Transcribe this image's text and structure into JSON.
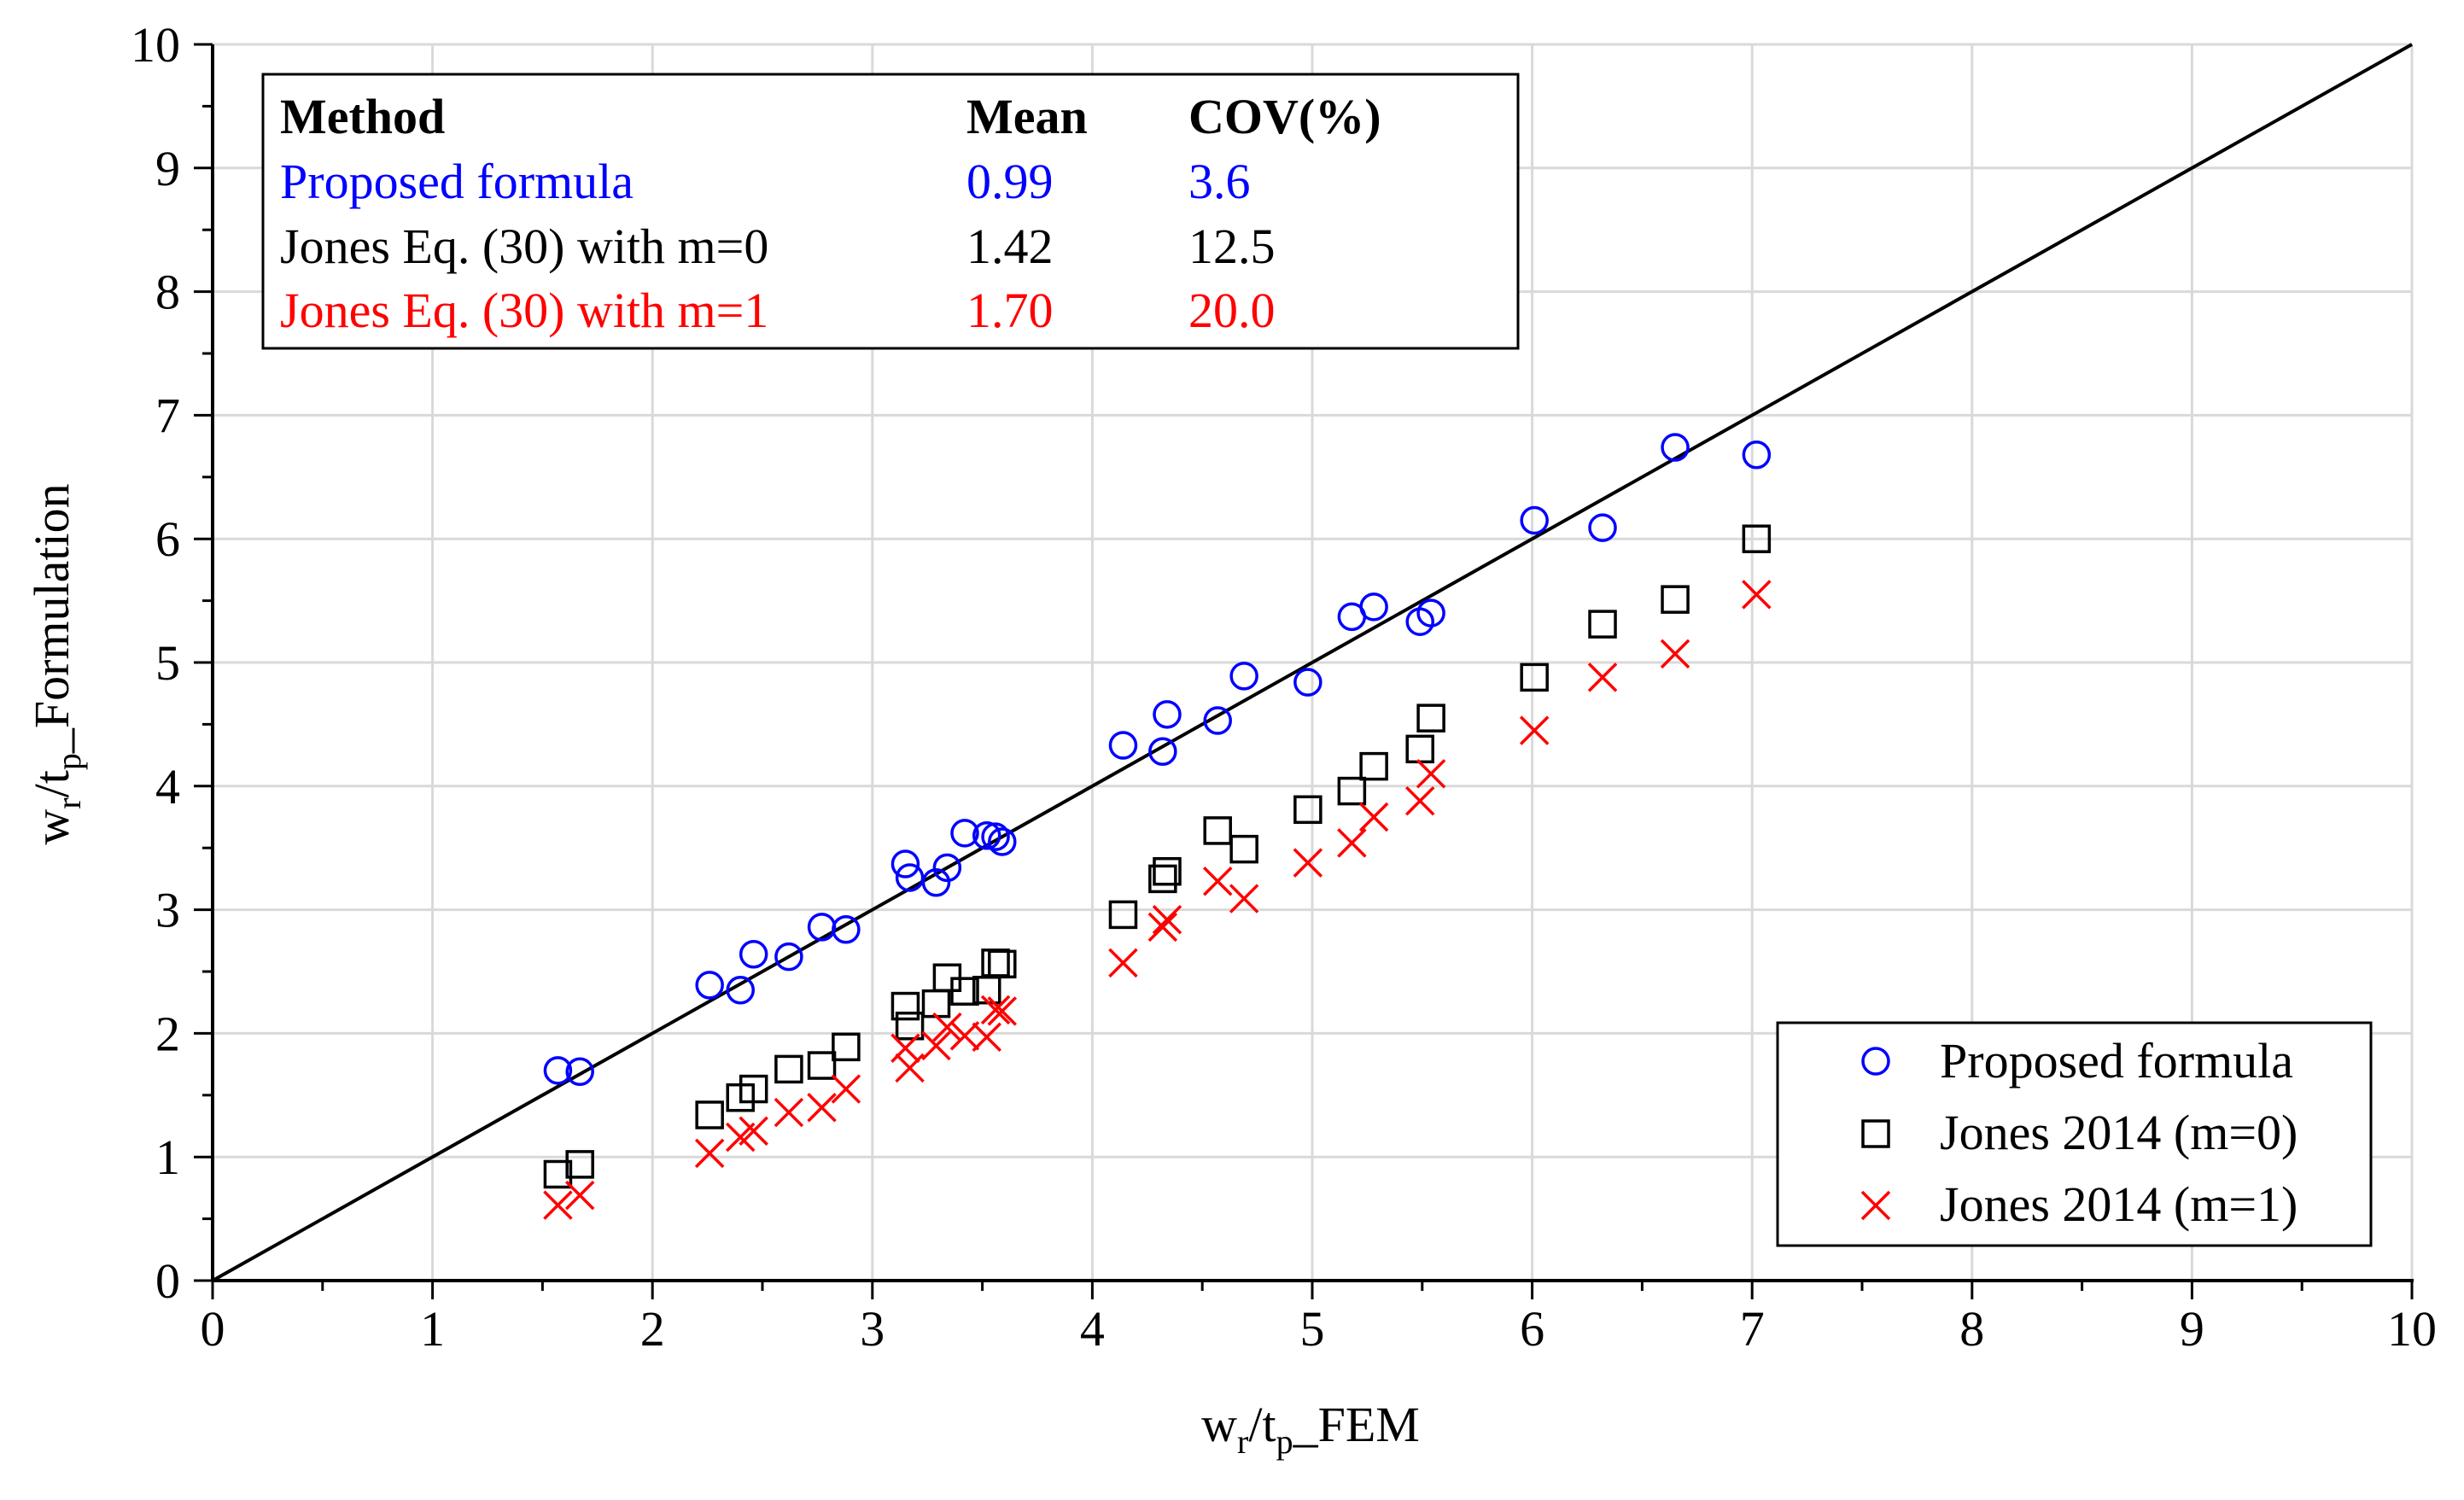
{
  "chart_data": {
    "type": "scatter",
    "title": "",
    "xlabel": {
      "main": "w",
      "sub1": "r",
      "mid": "/t",
      "sub2": "p",
      "tail": "_FEM"
    },
    "ylabel": {
      "main": "w",
      "sub1": "r",
      "mid": "/t",
      "sub2": "p",
      "tail": "_Formulation"
    },
    "xlim": [
      0,
      10
    ],
    "ylim": [
      0,
      10
    ],
    "xticks": [
      "0",
      "1",
      "2",
      "3",
      "4",
      "5",
      "6",
      "7",
      "8",
      "9",
      "10"
    ],
    "yticks": [
      "0",
      "1",
      "2",
      "3",
      "4",
      "5",
      "6",
      "7",
      "8",
      "9",
      "10"
    ],
    "grid": true,
    "reference_line": {
      "name": "y=x",
      "x": [
        0,
        10
      ],
      "y": [
        0,
        10
      ]
    },
    "series": [
      {
        "name": "Proposed formula",
        "marker": "circle",
        "color": "#0000ff",
        "x": [
          1.57,
          1.67,
          2.26,
          2.4,
          2.46,
          2.62,
          2.77,
          2.88,
          3.15,
          3.17,
          3.29,
          3.34,
          3.42,
          3.52,
          3.56,
          3.59,
          4.14,
          4.32,
          4.34,
          4.57,
          4.69,
          4.98,
          5.18,
          5.28,
          5.49,
          5.54,
          6.01,
          6.32,
          6.65,
          7.02
        ],
        "y": [
          1.7,
          1.69,
          2.39,
          2.35,
          2.64,
          2.62,
          2.86,
          2.84,
          3.37,
          3.26,
          3.22,
          3.34,
          3.62,
          3.6,
          3.59,
          3.55,
          4.33,
          4.28,
          4.58,
          4.53,
          4.89,
          4.84,
          5.37,
          5.45,
          5.33,
          5.4,
          6.15,
          6.09,
          6.74,
          6.68
        ]
      },
      {
        "name": "Jones 2014 (m=0)",
        "marker": "square",
        "color": "#000000",
        "x": [
          1.57,
          1.67,
          2.26,
          2.4,
          2.46,
          2.62,
          2.77,
          2.88,
          3.15,
          3.17,
          3.29,
          3.34,
          3.42,
          3.52,
          3.56,
          3.59,
          4.14,
          4.32,
          4.34,
          4.57,
          4.69,
          4.98,
          5.18,
          5.28,
          5.49,
          5.54,
          6.01,
          6.32,
          6.65,
          7.02
        ],
        "y": [
          0.86,
          0.94,
          1.34,
          1.48,
          1.55,
          1.71,
          1.74,
          1.89,
          2.22,
          2.06,
          2.24,
          2.45,
          2.34,
          2.35,
          2.57,
          2.56,
          2.96,
          3.25,
          3.31,
          3.64,
          3.49,
          3.81,
          3.96,
          4.16,
          4.3,
          4.55,
          4.88,
          5.31,
          5.51,
          6.0
        ]
      },
      {
        "name": "Jones 2014 (m=1)",
        "marker": "x",
        "color": "#ff0000",
        "x": [
          1.57,
          1.67,
          2.26,
          2.4,
          2.46,
          2.62,
          2.77,
          2.88,
          3.15,
          3.17,
          3.29,
          3.34,
          3.42,
          3.52,
          3.56,
          3.59,
          4.14,
          4.32,
          4.34,
          4.57,
          4.69,
          4.98,
          5.18,
          5.28,
          5.49,
          5.54,
          6.01,
          6.32,
          6.65,
          7.02
        ],
        "y": [
          0.61,
          0.69,
          1.03,
          1.16,
          1.21,
          1.36,
          1.4,
          1.55,
          1.88,
          1.72,
          1.9,
          2.05,
          1.98,
          1.97,
          2.19,
          2.18,
          2.57,
          2.86,
          2.92,
          3.23,
          3.09,
          3.38,
          3.54,
          3.75,
          3.88,
          4.1,
          4.45,
          4.88,
          5.07,
          5.55
        ]
      }
    ],
    "legend": {
      "placement": "bottom-right",
      "entries": [
        "Proposed formula",
        "Jones 2014 (m=0)",
        "Jones 2014 (m=1)"
      ]
    },
    "stats_table": {
      "placement": "top-left",
      "headers": [
        "Method",
        "Mean",
        "COV(%)"
      ],
      "rows": [
        {
          "method": "Proposed formula",
          "mean": "0.99",
          "cov": "3.6",
          "color": "#0000ff"
        },
        {
          "method": "Jones Eq. (30) with m=0",
          "mean": "1.42",
          "cov": "12.5",
          "color": "#000000"
        },
        {
          "method": "Jones Eq. (30) with m=1",
          "mean": "1.70",
          "cov": "20.0",
          "color": "#ff0000"
        }
      ]
    }
  }
}
